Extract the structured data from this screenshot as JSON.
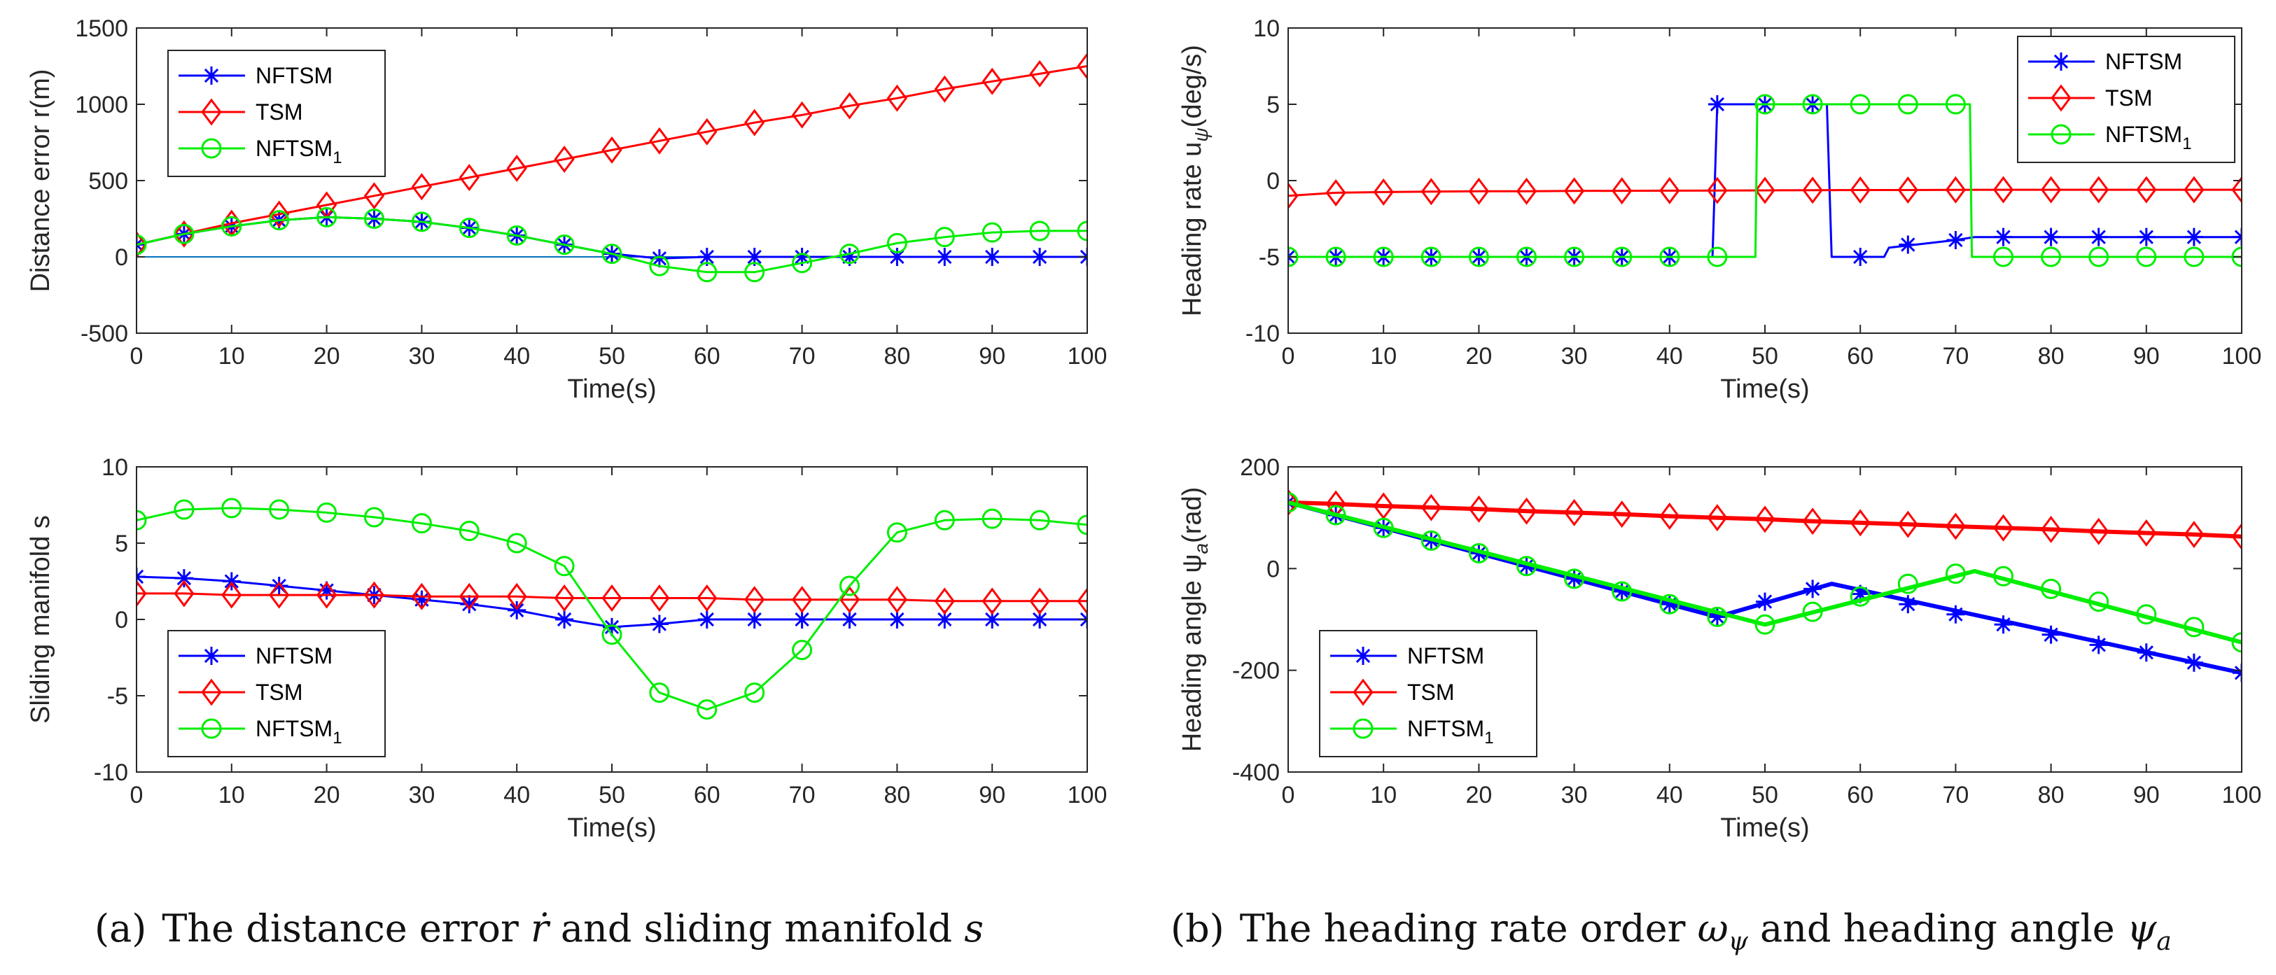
{
  "colors": {
    "NFTSM": "#0000ff",
    "TSM": "#ff0000",
    "NFTSM1": "#00ee00",
    "zero_line": "#0072bd"
  },
  "captions": {
    "a": {
      "prefix": "(a)",
      "text": "The distance error ",
      "sym1": "ṙ",
      "mid": " and sliding manifold ",
      "sym2": "s"
    },
    "b": {
      "prefix": "(b)",
      "text": "The heading rate order ",
      "sym1": "ω",
      "sub1": "ψ",
      "mid": " and heading angle ",
      "sym2": "ψ",
      "sub2": "a"
    }
  },
  "chart_data": [
    {
      "id": "distance-error",
      "type": "line",
      "xlabel": "Time(s)",
      "ylabel": {
        "text": "Distance error r(m)",
        "sub": ""
      },
      "xlim": [
        0,
        100
      ],
      "ylim": [
        -500,
        1500
      ],
      "xticks": [
        "0",
        "10",
        "20",
        "30",
        "40",
        "50",
        "60",
        "70",
        "80",
        "90",
        "100"
      ],
      "yticks": [
        "-500",
        "0",
        "500",
        "1000",
        "1500"
      ],
      "legend": {
        "position": "top-left",
        "entries": [
          "NFTSM",
          "TSM",
          "NFTSM1"
        ]
      },
      "reference_line": 0,
      "series": [
        {
          "name": "NFTSM",
          "marker": "asterisk",
          "x": [
            0,
            5,
            10,
            15,
            20,
            25,
            30,
            35,
            40,
            45,
            50,
            55,
            60,
            65,
            70,
            75,
            80,
            85,
            90,
            95,
            100
          ],
          "y": [
            80,
            150,
            200,
            240,
            260,
            250,
            230,
            190,
            140,
            80,
            20,
            -10,
            0,
            0,
            0,
            0,
            0,
            0,
            0,
            0,
            0
          ]
        },
        {
          "name": "TSM",
          "marker": "diamond",
          "x": [
            0,
            5,
            10,
            15,
            20,
            25,
            30,
            35,
            40,
            45,
            50,
            55,
            60,
            65,
            70,
            75,
            80,
            85,
            90,
            95,
            100
          ],
          "y": [
            80,
            150,
            220,
            280,
            340,
            400,
            460,
            520,
            580,
            640,
            700,
            760,
            820,
            880,
            930,
            990,
            1040,
            1100,
            1150,
            1200,
            1250
          ]
        },
        {
          "name": "NFTSM1",
          "marker": "circle",
          "x": [
            0,
            5,
            10,
            15,
            20,
            25,
            30,
            35,
            40,
            45,
            50,
            55,
            60,
            65,
            70,
            75,
            80,
            85,
            90,
            95,
            100
          ],
          "y": [
            80,
            150,
            200,
            240,
            260,
            250,
            230,
            190,
            140,
            80,
            20,
            -60,
            -100,
            -100,
            -40,
            20,
            90,
            130,
            160,
            170,
            170
          ]
        }
      ]
    },
    {
      "id": "sliding-manifold",
      "type": "line",
      "xlabel": "Time(s)",
      "ylabel": {
        "text": "Sliding manifold s",
        "sub": ""
      },
      "xlim": [
        0,
        100
      ],
      "ylim": [
        -10,
        10
      ],
      "xticks": [
        "0",
        "10",
        "20",
        "30",
        "40",
        "50",
        "60",
        "70",
        "80",
        "90",
        "100"
      ],
      "yticks": [
        "-10",
        "-5",
        "0",
        "5",
        "10"
      ],
      "legend": {
        "position": "bottom-left",
        "entries": [
          "NFTSM",
          "TSM",
          "NFTSM1"
        ]
      },
      "series": [
        {
          "name": "NFTSM",
          "marker": "asterisk",
          "x": [
            0,
            5,
            10,
            15,
            20,
            25,
            30,
            35,
            40,
            45,
            50,
            55,
            60,
            65,
            70,
            75,
            80,
            85,
            90,
            95,
            100
          ],
          "y": [
            2.8,
            2.7,
            2.5,
            2.2,
            1.9,
            1.6,
            1.3,
            1.0,
            0.6,
            0.0,
            -0.5,
            -0.3,
            0,
            0,
            0,
            0,
            0,
            0,
            0,
            0,
            0
          ]
        },
        {
          "name": "TSM",
          "marker": "diamond",
          "x": [
            0,
            5,
            10,
            15,
            20,
            25,
            30,
            35,
            40,
            45,
            50,
            55,
            60,
            65,
            70,
            75,
            80,
            85,
            90,
            95,
            100
          ],
          "y": [
            1.7,
            1.7,
            1.6,
            1.6,
            1.6,
            1.6,
            1.5,
            1.5,
            1.5,
            1.4,
            1.4,
            1.4,
            1.4,
            1.3,
            1.3,
            1.3,
            1.3,
            1.2,
            1.2,
            1.2,
            1.2
          ]
        },
        {
          "name": "NFTSM1",
          "marker": "circle",
          "x": [
            0,
            5,
            10,
            15,
            20,
            25,
            30,
            35,
            40,
            45,
            50,
            55,
            60,
            65,
            70,
            75,
            80,
            85,
            90,
            95,
            100
          ],
          "y": [
            6.5,
            7.2,
            7.3,
            7.2,
            7.0,
            6.7,
            6.3,
            5.8,
            5.0,
            3.5,
            -1.0,
            -4.8,
            -5.9,
            -4.8,
            -2.0,
            2.2,
            5.7,
            6.5,
            6.6,
            6.5,
            6.2
          ]
        }
      ]
    },
    {
      "id": "heading-rate",
      "type": "line",
      "xlabel": "Time(s)",
      "ylabel": {
        "text": "Heading rate u",
        "sub": "ψ",
        "suffix": "(deg/s)"
      },
      "xlim": [
        0,
        100
      ],
      "ylim": [
        -10,
        10
      ],
      "xticks": [
        "0",
        "10",
        "20",
        "30",
        "40",
        "50",
        "60",
        "70",
        "80",
        "90",
        "100"
      ],
      "yticks": [
        "-10",
        "-5",
        "0",
        "5",
        "10"
      ],
      "legend": {
        "position": "top-right",
        "entries": [
          "NFTSM",
          "TSM",
          "NFTSM1"
        ]
      },
      "series": [
        {
          "name": "NFTSM",
          "marker": "asterisk",
          "x": [
            0,
            5,
            10,
            15,
            20,
            25,
            30,
            35,
            40,
            45,
            50,
            55,
            60,
            65,
            70,
            75,
            80,
            85,
            90,
            95,
            100
          ],
          "y": [
            -5,
            -5,
            -5,
            -5,
            -5,
            -5,
            -5,
            -5,
            -5,
            5,
            5,
            5,
            -5,
            -4.2,
            -3.9,
            -3.7,
            -3.7,
            -3.7,
            -3.7,
            -3.7,
            -3.7
          ],
          "line": {
            "x": [
              0,
              44.5,
              45,
              56.5,
              57,
              62.5,
              63,
              70,
              72,
              100
            ],
            "y": [
              -5,
              -5,
              5,
              5,
              -5,
              -5,
              -4.4,
              -3.9,
              -3.7,
              -3.7
            ]
          }
        },
        {
          "name": "TSM",
          "marker": "diamond",
          "x": [
            0,
            5,
            10,
            15,
            20,
            25,
            30,
            35,
            40,
            45,
            50,
            55,
            60,
            65,
            70,
            75,
            80,
            85,
            90,
            95,
            100
          ],
          "y": [
            -1,
            -0.8,
            -0.75,
            -0.72,
            -0.7,
            -0.7,
            -0.68,
            -0.67,
            -0.66,
            -0.65,
            -0.64,
            -0.63,
            -0.62,
            -0.62,
            -0.61,
            -0.6,
            -0.6,
            -0.6,
            -0.6,
            -0.6,
            -0.6
          ]
        },
        {
          "name": "NFTSM1",
          "marker": "circle",
          "x": [
            0,
            5,
            10,
            15,
            20,
            25,
            30,
            35,
            40,
            45,
            50,
            55,
            60,
            65,
            70,
            75,
            80,
            85,
            90,
            95,
            100
          ],
          "y": [
            -5,
            -5,
            -5,
            -5,
            -5,
            -5,
            -5,
            -5,
            -5,
            -5,
            5,
            5,
            5,
            5,
            5,
            -5,
            -5,
            -5,
            -5,
            -5,
            -5
          ],
          "line": {
            "x": [
              0,
              49,
              49.2,
              71.5,
              71.7,
              100
            ],
            "y": [
              -5,
              -5,
              5,
              5,
              -5,
              -5
            ]
          }
        }
      ]
    },
    {
      "id": "heading-angle",
      "type": "line",
      "xlabel": "Time(s)",
      "ylabel": {
        "text": "Heading angle ψ",
        "sub": "a",
        "suffix": "(rad)"
      },
      "xlim": [
        0,
        100
      ],
      "ylim": [
        -400,
        200
      ],
      "xticks": [
        "0",
        "10",
        "20",
        "30",
        "40",
        "50",
        "60",
        "70",
        "80",
        "90",
        "100"
      ],
      "yticks": [
        "-400",
        "-200",
        "0",
        "200"
      ],
      "legend": {
        "position": "bottom-left",
        "entries": [
          "NFTSM",
          "TSM",
          "NFTSM1"
        ]
      },
      "series": [
        {
          "name": "NFTSM",
          "marker": "asterisk",
          "x": [
            0,
            5,
            10,
            15,
            20,
            25,
            30,
            35,
            40,
            45,
            50,
            55,
            60,
            65,
            70,
            75,
            80,
            85,
            90,
            95,
            100
          ],
          "y": [
            130,
            105,
            80,
            55,
            30,
            5,
            -20,
            -45,
            -70,
            -95,
            -65,
            -40,
            -50,
            -70,
            -90,
            -110,
            -130,
            -150,
            -165,
            -185,
            -205
          ],
          "line": {
            "x": [
              0,
              45,
              57,
              100
            ],
            "y": [
              130,
              -95,
              -30,
              -205
            ]
          }
        },
        {
          "name": "TSM",
          "marker": "diamond",
          "x": [
            0,
            5,
            10,
            15,
            20,
            25,
            30,
            35,
            40,
            45,
            50,
            55,
            60,
            65,
            70,
            75,
            80,
            85,
            90,
            95,
            100
          ],
          "y": [
            130,
            127,
            123,
            120,
            117,
            113,
            110,
            107,
            103,
            100,
            97,
            93,
            90,
            87,
            83,
            80,
            77,
            73,
            70,
            67,
            63
          ]
        },
        {
          "name": "NFTSM1",
          "marker": "circle",
          "x": [
            0,
            5,
            10,
            15,
            20,
            25,
            30,
            35,
            40,
            45,
            50,
            55,
            60,
            65,
            70,
            75,
            80,
            85,
            90,
            95,
            100
          ],
          "y": [
            130,
            105,
            80,
            55,
            30,
            5,
            -20,
            -45,
            -70,
            -95,
            -110,
            -85,
            -55,
            -30,
            -10,
            -15,
            -40,
            -65,
            -90,
            -115,
            -145
          ],
          "line": {
            "x": [
              0,
              50,
              72,
              100
            ],
            "y": [
              130,
              -110,
              -5,
              -145
            ]
          }
        }
      ]
    }
  ]
}
